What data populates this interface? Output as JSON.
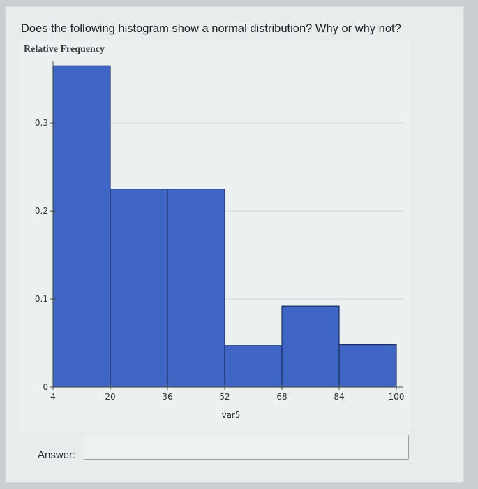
{
  "question": {
    "text": "Does the following histogram show a normal distribution? Why or why not?"
  },
  "chart_data": {
    "type": "bar",
    "ylabel": "Relative Frequency",
    "xlabel": "var5",
    "bins": [
      {
        "start": 4,
        "end": 20,
        "value": 0.365
      },
      {
        "start": 20,
        "end": 36,
        "value": 0.225
      },
      {
        "start": 36,
        "end": 52,
        "value": 0.225
      },
      {
        "start": 52,
        "end": 68,
        "value": 0.047
      },
      {
        "start": 68,
        "end": 84,
        "value": 0.092
      },
      {
        "start": 84,
        "end": 100,
        "value": 0.048
      }
    ],
    "x_ticks": [
      "4",
      "20",
      "36",
      "52",
      "68",
      "84",
      "100"
    ],
    "y_ticks": [
      "0",
      "0.1",
      "0.2",
      "0.3"
    ],
    "ylim": [
      0,
      0.37
    ],
    "xlim": [
      4,
      100
    ],
    "grid": true,
    "bar_color": "#3f66c4",
    "bar_edge_color": "#1e2f66"
  },
  "answer": {
    "label": "Answer:",
    "value": ""
  }
}
